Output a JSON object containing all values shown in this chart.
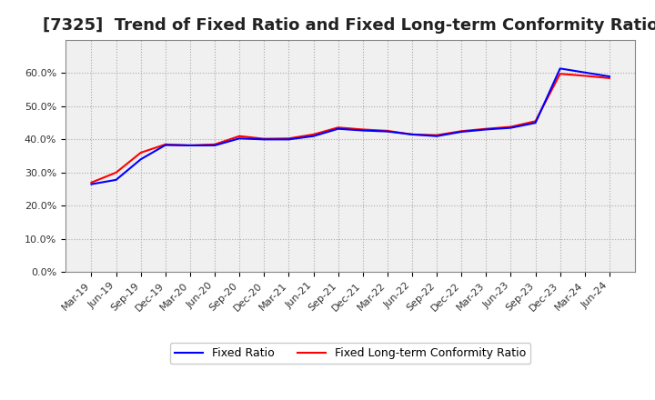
{
  "title": "[7325]  Trend of Fixed Ratio and Fixed Long-term Conformity Ratio",
  "x_labels": [
    "Mar-19",
    "Jun-19",
    "Sep-19",
    "Dec-19",
    "Mar-20",
    "Jun-20",
    "Sep-20",
    "Dec-20",
    "Mar-21",
    "Jun-21",
    "Sep-21",
    "Dec-21",
    "Mar-22",
    "Jun-22",
    "Sep-22",
    "Dec-22",
    "Mar-23",
    "Jun-23",
    "Sep-23",
    "Dec-23",
    "Mar-24",
    "Jun-24"
  ],
  "fixed_ratio": [
    0.265,
    0.278,
    0.34,
    0.383,
    0.382,
    0.382,
    0.403,
    0.4,
    0.4,
    0.41,
    0.432,
    0.427,
    0.424,
    0.415,
    0.41,
    0.423,
    0.43,
    0.435,
    0.45,
    0.614,
    0.602,
    0.59
  ],
  "fixed_lt_ratio": [
    0.27,
    0.3,
    0.36,
    0.385,
    0.382,
    0.385,
    0.41,
    0.402,
    0.403,
    0.415,
    0.436,
    0.43,
    0.426,
    0.415,
    0.413,
    0.425,
    0.432,
    0.438,
    0.455,
    0.598,
    0.592,
    0.585
  ],
  "fixed_ratio_color": "#0000ff",
  "fixed_lt_ratio_color": "#ff0000",
  "ylim": [
    0.0,
    0.7
  ],
  "yticks": [
    0.0,
    0.1,
    0.2,
    0.3,
    0.4,
    0.5,
    0.6
  ],
  "background_color": "#ffffff",
  "axes_facecolor": "#f0f0f0",
  "grid_color": "#aaaaaa",
  "title_fontsize": 13,
  "tick_fontsize": 8,
  "legend_fixed_ratio": "Fixed Ratio",
  "legend_fixed_lt_ratio": "Fixed Long-term Conformity Ratio"
}
